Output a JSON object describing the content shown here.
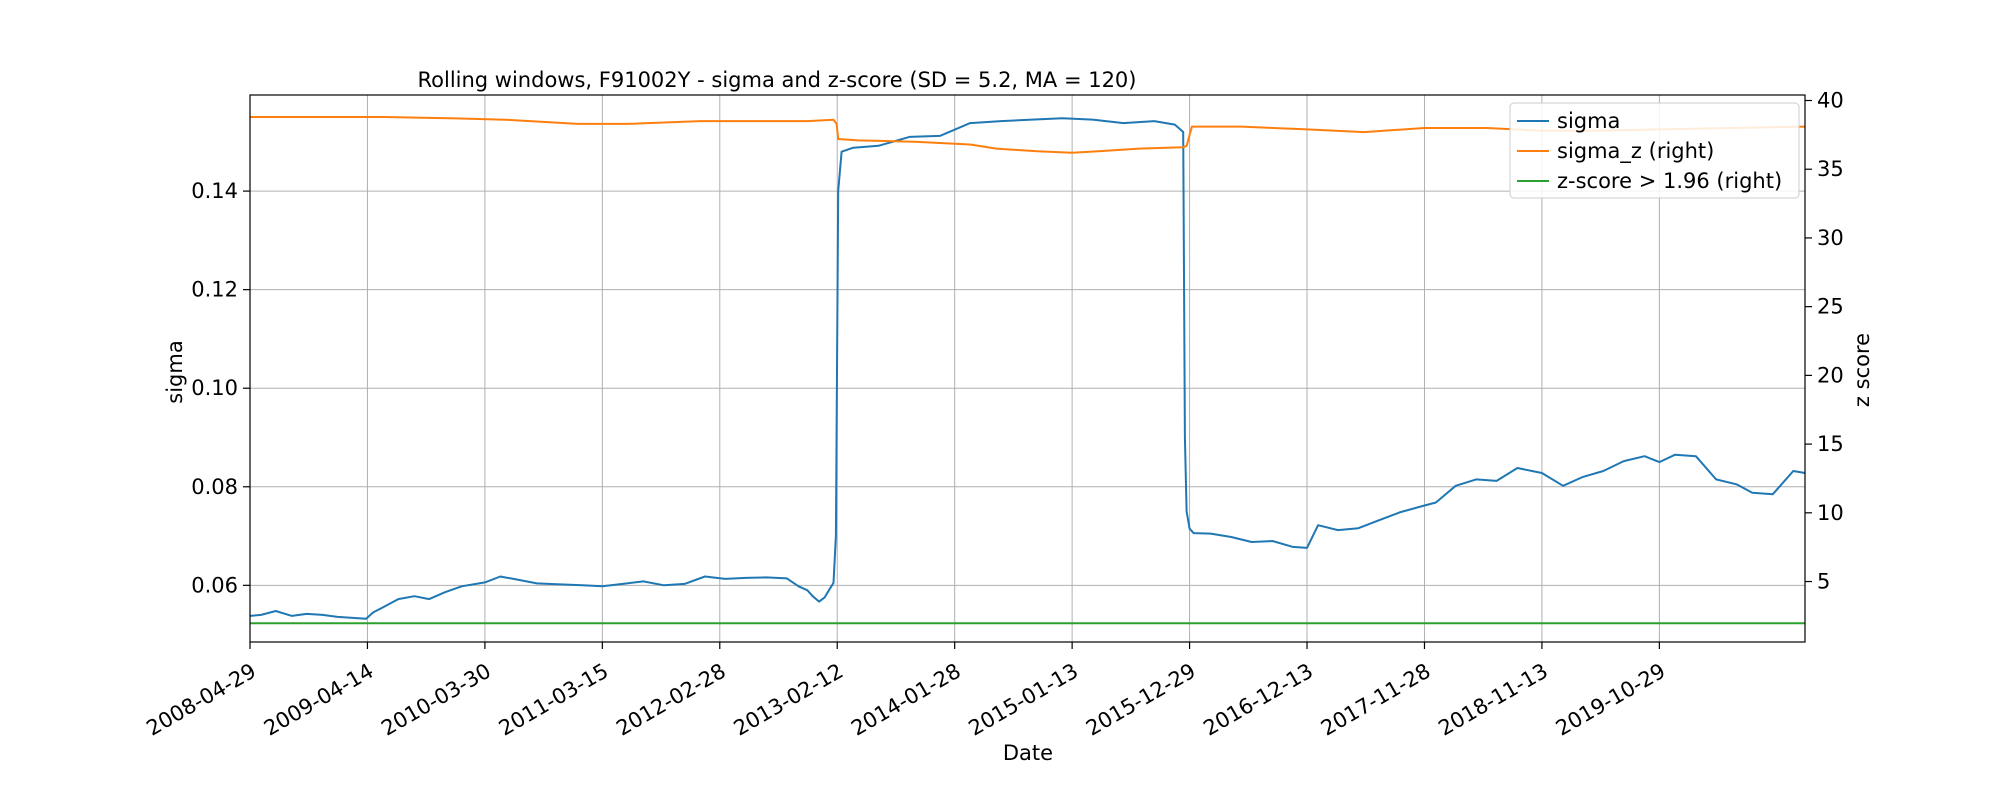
{
  "chart_data": {
    "type": "line",
    "title": "Rolling windows, F91002Y - sigma and z-score (SD = 5.2, MA = 120)",
    "xlabel": "Date",
    "ylabel": "sigma",
    "y2label": "z score",
    "x_ticks": [
      "2008-04-29",
      "2009-04-14",
      "2010-03-30",
      "2011-03-15",
      "2012-02-28",
      "2013-02-12",
      "2014-01-28",
      "2015-01-13",
      "2015-12-29",
      "2016-12-13",
      "2017-11-28",
      "2018-11-13",
      "2019-10-29"
    ],
    "xlim": [
      "2008-04-29",
      "2021-01-05"
    ],
    "ylim": [
      0.0485,
      0.1595
    ],
    "y_ticks": [
      "0.06",
      "0.08",
      "0.10",
      "0.12",
      "0.14"
    ],
    "y2lim": [
      0.6,
      40.4
    ],
    "y2_ticks": [
      "5",
      "10",
      "15",
      "20",
      "25",
      "30",
      "35",
      "40"
    ],
    "grid": true,
    "legend_position": "top-right",
    "colors": {
      "sigma": "#1f77b4",
      "sigma_z": "#ff7f0e",
      "threshold": "#2ca02c"
    },
    "series": [
      {
        "name": "sigma",
        "axis": "left",
        "x": [
          "2008-04-29",
          "2008-06-01",
          "2008-07-15",
          "2008-09-01",
          "2008-10-15",
          "2008-12-01",
          "2009-01-15",
          "2009-03-01",
          "2009-04-10",
          "2009-05-01",
          "2009-06-01",
          "2009-07-15",
          "2009-09-01",
          "2009-10-15",
          "2009-12-01",
          "2010-01-20",
          "2010-03-30",
          "2010-05-15",
          "2010-07-01",
          "2010-09-01",
          "2010-11-01",
          "2011-01-15",
          "2011-03-15",
          "2011-05-15",
          "2011-07-15",
          "2011-09-15",
          "2011-11-15",
          "2012-01-15",
          "2012-03-15",
          "2012-05-15",
          "2012-07-15",
          "2012-09-15",
          "2012-10-20",
          "2012-11-15",
          "2012-12-01",
          "2012-12-20",
          "2013-01-05",
          "2013-01-20",
          "2013-02-01",
          "2013-02-08",
          "2013-02-15",
          "2013-02-25",
          "2013-04-01",
          "2013-06-15",
          "2013-09-15",
          "2013-12-15",
          "2014-03-15",
          "2014-06-15",
          "2014-09-15",
          "2014-12-15",
          "2015-03-15",
          "2015-06-15",
          "2015-09-15",
          "2015-11-15",
          "2015-12-10",
          "2015-12-15",
          "2015-12-20",
          "2015-12-29",
          "2016-01-10",
          "2016-03-01",
          "2016-05-01",
          "2016-07-01",
          "2016-09-01",
          "2016-11-01",
          "2016-12-13",
          "2017-01-15",
          "2017-03-15",
          "2017-05-15",
          "2017-07-15",
          "2017-09-15",
          "2017-11-28",
          "2018-01-01",
          "2018-03-01",
          "2018-05-01",
          "2018-07-01",
          "2018-09-01",
          "2018-11-13",
          "2019-01-15",
          "2019-03-15",
          "2019-05-15",
          "2019-07-15",
          "2019-09-15",
          "2019-10-29",
          "2019-12-15",
          "2020-02-15",
          "2020-04-15",
          "2020-06-15",
          "2020-08-01",
          "2020-10-01",
          "2020-12-01",
          "2021-01-05"
        ],
        "values": [
          0.0538,
          0.054,
          0.0548,
          0.0538,
          0.0542,
          0.054,
          0.0536,
          0.0534,
          0.0532,
          0.0545,
          0.0556,
          0.0572,
          0.0578,
          0.0572,
          0.0586,
          0.0598,
          0.0606,
          0.0618,
          0.0612,
          0.0604,
          0.0602,
          0.06,
          0.0598,
          0.0603,
          0.0608,
          0.06,
          0.0603,
          0.0618,
          0.0613,
          0.0615,
          0.0616,
          0.0614,
          0.0598,
          0.059,
          0.0578,
          0.0567,
          0.0575,
          0.0592,
          0.0605,
          0.07,
          0.14,
          0.148,
          0.1488,
          0.1492,
          0.151,
          0.1512,
          0.1538,
          0.1542,
          0.1545,
          0.1548,
          0.1545,
          0.1538,
          0.1542,
          0.1535,
          0.152,
          0.09,
          0.075,
          0.0715,
          0.0706,
          0.0705,
          0.0698,
          0.0688,
          0.069,
          0.0678,
          0.0676,
          0.0722,
          0.0712,
          0.0716,
          0.0732,
          0.0748,
          0.0762,
          0.0768,
          0.0802,
          0.0815,
          0.0812,
          0.0838,
          0.0828,
          0.0802,
          0.082,
          0.0832,
          0.0852,
          0.0862,
          0.085,
          0.0865,
          0.0862,
          0.0815,
          0.0805,
          0.0788,
          0.0785,
          0.0832,
          0.0828
        ]
      },
      {
        "name": "sigma_z (right)",
        "axis": "right",
        "x": [
          "2008-04-29",
          "2009-01-01",
          "2009-06-01",
          "2010-01-01",
          "2010-06-01",
          "2011-01-01",
          "2011-06-01",
          "2012-01-01",
          "2012-06-01",
          "2012-11-15",
          "2013-02-01",
          "2013-02-10",
          "2013-02-15",
          "2013-04-15",
          "2013-10-01",
          "2014-03-15",
          "2014-06-01",
          "2014-10-01",
          "2015-01-13",
          "2015-04-01",
          "2015-08-01",
          "2015-12-10",
          "2015-12-20",
          "2016-01-05",
          "2016-06-01",
          "2016-12-13",
          "2017-06-01",
          "2017-11-28",
          "2018-06-01",
          "2018-11-13",
          "2019-05-01",
          "2019-10-29",
          "2020-06-01",
          "2021-01-05"
        ],
        "values": [
          38.8,
          38.8,
          38.8,
          38.7,
          38.6,
          38.3,
          38.3,
          38.5,
          38.5,
          38.5,
          38.6,
          38.3,
          37.2,
          37.1,
          37.0,
          36.8,
          36.5,
          36.3,
          36.2,
          36.3,
          36.5,
          36.6,
          36.7,
          38.1,
          38.1,
          37.9,
          37.7,
          38.0,
          38.0,
          37.8,
          37.8,
          37.9,
          38.0,
          38.1
        ]
      },
      {
        "name": "z-score > 1.96 (right)",
        "axis": "right",
        "x": [
          "2008-04-29",
          "2021-01-05"
        ],
        "values": [
          1.96,
          1.96
        ]
      }
    ]
  }
}
